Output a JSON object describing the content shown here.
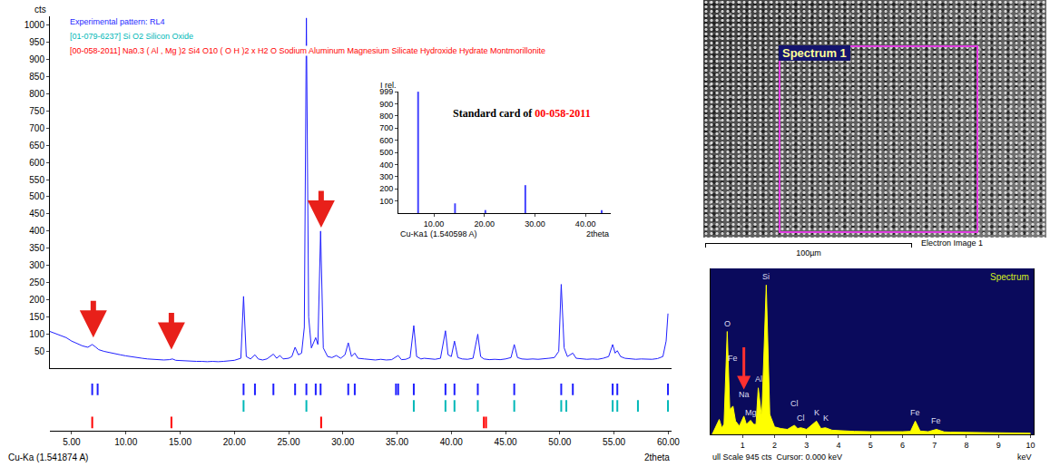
{
  "chart_data": [
    {
      "type": "line",
      "x_label": "2theta",
      "x_note": "Cu-Ka (1.541874 A)",
      "y_label": "cts",
      "grid": false,
      "xlim": [
        3,
        60.3
      ],
      "xticks": [
        {
          "value": 5,
          "label": "5.00"
        },
        {
          "value": 10,
          "label": "10.00"
        },
        {
          "value": 15,
          "label": "15.00"
        },
        {
          "value": 20,
          "label": "20.00"
        },
        {
          "value": 25,
          "label": "25.00"
        },
        {
          "value": 30,
          "label": "30.00"
        },
        {
          "value": 35,
          "label": "35.00"
        },
        {
          "value": 40,
          "label": "40.00"
        },
        {
          "value": 45,
          "label": "45.00"
        },
        {
          "value": 50,
          "label": "50.00"
        },
        {
          "value": 55,
          "label": "55.00"
        },
        {
          "value": 60,
          "label": "60.00"
        }
      ],
      "ylim": [
        0,
        1025
      ],
      "yticks": [
        50,
        100,
        150,
        200,
        250,
        300,
        350,
        400,
        450,
        500,
        550,
        600,
        650,
        700,
        750,
        800,
        850,
        900,
        950,
        1000
      ],
      "x": [
        3.0,
        3.5,
        4.0,
        4.5,
        5.0,
        5.5,
        6.0,
        6.5,
        6.9,
        7.2,
        7.5,
        8.0,
        8.5,
        9.0,
        9.5,
        10.0,
        10.5,
        11.0,
        11.5,
        12.0,
        12.5,
        13.0,
        13.5,
        14.0,
        14.3,
        14.6,
        15.0,
        15.5,
        16.0,
        16.5,
        17.0,
        17.5,
        18.0,
        18.5,
        19.0,
        19.5,
        20.0,
        20.6,
        20.85,
        21.1,
        21.5,
        21.9,
        22.2,
        22.6,
        23.0,
        23.6,
        23.9,
        24.2,
        24.5,
        25.0,
        25.3,
        25.6,
        25.9,
        26.2,
        26.45,
        26.64,
        26.85,
        27.1,
        27.5,
        27.7,
        27.95,
        28.2,
        28.6,
        29.0,
        29.4,
        29.8,
        30.2,
        30.5,
        30.8,
        31.1,
        31.4,
        32.0,
        32.5,
        33.0,
        33.5,
        34.0,
        34.5,
        34.9,
        35.1,
        35.4,
        35.8,
        36.2,
        36.54,
        36.8,
        37.2,
        37.5,
        38.0,
        38.5,
        39.0,
        39.46,
        39.7,
        40.0,
        40.29,
        40.6,
        41.0,
        41.5,
        42.0,
        42.44,
        42.7,
        43.0,
        43.5,
        44.0,
        44.5,
        45.0,
        45.5,
        45.8,
        46.1,
        46.5,
        47.0,
        47.5,
        48.0,
        48.5,
        49.0,
        49.5,
        49.9,
        50.13,
        50.4,
        50.7,
        51.2,
        51.5,
        52.0,
        52.5,
        53.0,
        53.5,
        54.0,
        54.5,
        54.87,
        55.1,
        55.3,
        55.6,
        56.0,
        56.5,
        57.0,
        57.5,
        58.0,
        58.5,
        59.0,
        59.5,
        59.8,
        59.97
      ],
      "series": [
        {
          "name": "Experimental pattern: RL4",
          "color": "#1f1fff",
          "values": [
            108,
            102,
            98,
            90,
            80,
            73,
            66,
            62,
            70,
            63,
            55,
            50,
            46,
            42,
            40,
            37,
            34,
            32,
            30,
            28,
            27,
            26,
            25,
            26,
            28,
            24,
            23,
            22,
            22,
            21,
            21,
            20,
            21,
            20,
            21,
            22,
            24,
            30,
            210,
            35,
            28,
            40,
            28,
            25,
            28,
            42,
            30,
            38,
            28,
            30,
            35,
            62,
            40,
            45,
            120,
            1020,
            150,
            60,
            90,
            70,
            400,
            60,
            35,
            32,
            38,
            30,
            40,
            75,
            35,
            45,
            30,
            28,
            26,
            25,
            27,
            25,
            26,
            35,
            38,
            26,
            27,
            32,
            125,
            35,
            28,
            30,
            28,
            27,
            30,
            110,
            40,
            35,
            80,
            32,
            28,
            27,
            30,
            100,
            35,
            28,
            26,
            27,
            26,
            28,
            32,
            70,
            32,
            28,
            27,
            28,
            27,
            28,
            30,
            32,
            50,
            245,
            60,
            35,
            45,
            30,
            28,
            27,
            28,
            27,
            30,
            35,
            70,
            45,
            52,
            35,
            30,
            28,
            27,
            28,
            28,
            27,
            29,
            35,
            80,
            160
          ],
          "peak_positions": [
            6.9,
            7.4,
            20.85,
            21.9,
            23.6,
            25.6,
            26.64,
            27.5,
            27.95,
            30.5,
            31.1,
            34.9,
            35.1,
            36.54,
            39.46,
            40.29,
            42.44,
            45.8,
            50.13,
            51.2,
            54.87,
            55.3,
            59.97
          ]
        }
      ],
      "references": [
        {
          "name": "[01-079-6237] Si O2 Silicon Oxide",
          "color": "#00b8b8",
          "positions": [
            20.85,
            26.64,
            36.54,
            39.46,
            40.29,
            42.44,
            45.8,
            50.13,
            50.6,
            54.87,
            55.3,
            57.2,
            59.97
          ]
        },
        {
          "name": "[00-058-2011] Na0.3 ( Al , Mg )2 Si4 O10 ( O H )2 x H2 O Sodium Aluminum Magnesium Silicate Hydroxide Hydrate Montmorillonite",
          "color": "#ff0000",
          "positions": [
            6.9,
            14.2,
            28.0,
            43.0,
            43.2
          ]
        }
      ],
      "arrows": {
        "x": [
          7.0,
          14.2,
          28.0
        ],
        "y": [
          90,
          55,
          410
        ],
        "color": "#e8201a"
      }
    },
    {
      "type": "bar",
      "title_parts": [
        {
          "text": "Standard card of",
          "color": "#000000"
        },
        {
          "text": "00-058-2011",
          "color": "#ff0000"
        }
      ],
      "x_label": "2theta",
      "x_note": "Cu-Ka1 (1.540598 A)",
      "y_label": "I rel.",
      "color": "#3f3fff",
      "xlim": [
        3,
        45
      ],
      "xticks": [
        {
          "value": 10,
          "label": "10.00"
        },
        {
          "value": 20,
          "label": "20.00"
        },
        {
          "value": 30,
          "label": "30.00"
        },
        {
          "value": 40,
          "label": "40.00"
        }
      ],
      "ylim": [
        0,
        1000
      ],
      "yticks": [
        100,
        200,
        300,
        400,
        500,
        600,
        700,
        800,
        900,
        999
      ],
      "x": [
        6.9,
        14.2,
        20.2,
        28.1,
        43.2
      ],
      "values": [
        999,
        80,
        25,
        230,
        25
      ]
    },
    {
      "type": "area",
      "title": "Spectrum",
      "x_label": "keV",
      "x_note": "ull Scale 945 cts  Cursor: 0.000 keV",
      "color": "#ffff00",
      "tick_labels": "x",
      "xlim": [
        0,
        10.1
      ],
      "xticks": [
        1,
        2,
        3,
        4,
        5,
        6,
        7,
        8,
        9,
        10
      ],
      "ylim": [
        0,
        1000
      ],
      "x": [
        0.05,
        0.15,
        0.27,
        0.35,
        0.42,
        0.52,
        0.6,
        0.7,
        0.78,
        0.9,
        1.04,
        1.12,
        1.25,
        1.35,
        1.42,
        1.49,
        1.6,
        1.74,
        1.85,
        2.0,
        2.2,
        2.4,
        2.62,
        2.72,
        2.82,
        3.0,
        3.31,
        3.45,
        3.59,
        3.8,
        4.0,
        4.5,
        5.0,
        5.5,
        6.0,
        6.25,
        6.4,
        6.55,
        6.8,
        7.06,
        7.3,
        7.5,
        8.0,
        8.5,
        9.0,
        9.5,
        10.0
      ],
      "values": [
        0,
        40,
        90,
        40,
        60,
        620,
        150,
        170,
        80,
        50,
        110,
        60,
        85,
        60,
        60,
        280,
        100,
        900,
        120,
        45,
        35,
        30,
        55,
        35,
        40,
        30,
        80,
        35,
        40,
        25,
        22,
        18,
        16,
        15,
        16,
        18,
        80,
        20,
        16,
        30,
        15,
        13,
        12,
        10,
        9,
        8,
        7
      ],
      "peaks": [
        {
          "label": "O",
          "x": 0.52,
          "y": 630
        },
        {
          "label": "Fe",
          "x": 0.7,
          "y": 420
        },
        {
          "label": "Na",
          "x": 1.04,
          "y": 200
        },
        {
          "label": "Mg",
          "x": 1.25,
          "y": 95
        },
        {
          "label": "Al",
          "x": 1.49,
          "y": 295
        },
        {
          "label": "Si",
          "x": 1.74,
          "y": 915
        },
        {
          "label": "Cl",
          "x": 2.62,
          "y": 150
        },
        {
          "label": "Cl",
          "x": 2.82,
          "y": 60
        },
        {
          "label": "K",
          "x": 3.31,
          "y": 95
        },
        {
          "label": "K",
          "x": 3.59,
          "y": 60
        },
        {
          "label": "Fe",
          "x": 6.4,
          "y": 95
        },
        {
          "label": "Fe",
          "x": 7.06,
          "y": 45
        }
      ],
      "arrow": {
        "x": 1.04,
        "y": 270,
        "color": "#ff3030"
      }
    }
  ],
  "image": {
    "label": "Spectrum 1",
    "scale_bar": "100µm",
    "caption": "Electron Image 1"
  }
}
